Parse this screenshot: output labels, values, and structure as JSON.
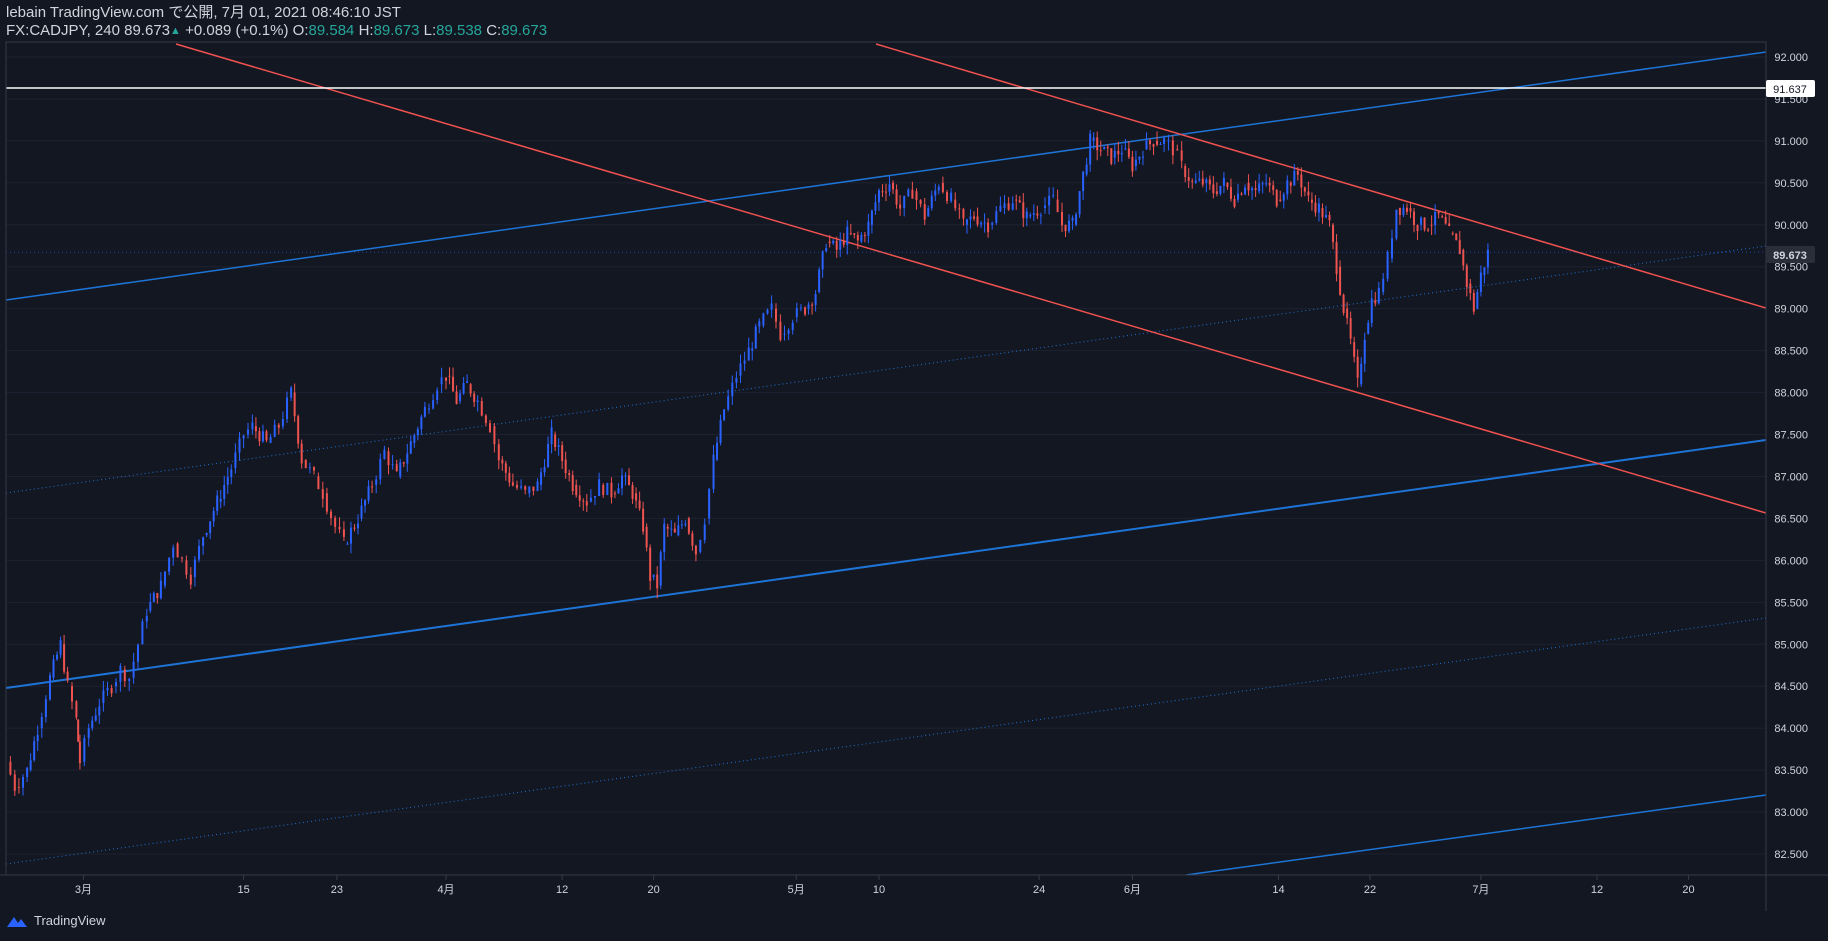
{
  "header": {
    "title": "lebain TradingView.com で公開, 7月 01, 2021 08:46:10 JST",
    "symbol": "FX:CADJPY, 240",
    "last": "89.673",
    "change": "+0.089 (+0.1%)",
    "o_label": "O:",
    "o": "89.584",
    "h_label": "H:",
    "h": "89.673",
    "l_label": "L:",
    "l": "89.538",
    "c_label": "C:",
    "c": "89.673"
  },
  "footer": {
    "brand": "TradingView"
  },
  "price_label": "91.637",
  "last_label": "89.673",
  "colors": {
    "bg": "#131722",
    "up": "#2962ff",
    "down": "#ef5350",
    "blue_line": "#1e74d6",
    "red_line": "#f0524f",
    "grid": "#1e2230"
  },
  "chart_data": {
    "type": "candlestick",
    "symbol": "FX:CADJPY",
    "interval": "240",
    "ylim": [
      82.3,
      92.3
    ],
    "y_ticks": [
      82.5,
      83.0,
      83.5,
      84.0,
      84.5,
      85.0,
      85.5,
      86.0,
      86.5,
      87.0,
      87.5,
      88.0,
      88.5,
      89.0,
      89.5,
      90.0,
      90.5,
      91.0,
      91.5,
      92.0
    ],
    "y_tick_labels": [
      "82.500",
      "83.000",
      "83.500",
      "84.000",
      "84.500",
      "85.000",
      "85.500",
      "86.000",
      "86.500",
      "87.000",
      "87.500",
      "88.000",
      "88.500",
      "89.000",
      "89.500",
      "90.000",
      "90.500",
      "91.000",
      "91.500",
      "92.000"
    ],
    "x_ticks": [
      {
        "label": "3月",
        "x": 0.044
      },
      {
        "label": "15",
        "x": 0.135
      },
      {
        "label": "23",
        "x": 0.188
      },
      {
        "label": "4月",
        "x": 0.25
      },
      {
        "label": "12",
        "x": 0.316
      },
      {
        "label": "20",
        "x": 0.368
      },
      {
        "label": "5月",
        "x": 0.449
      },
      {
        "label": "10",
        "x": 0.496
      },
      {
        "label": "24",
        "x": 0.587
      },
      {
        "label": "6月",
        "x": 0.64
      },
      {
        "label": "14",
        "x": 0.723
      },
      {
        "label": "22",
        "x": 0.775
      },
      {
        "label": "7月",
        "x": 0.838
      },
      {
        "label": "12",
        "x": 0.904
      },
      {
        "label": "20",
        "x": 0.956
      }
    ],
    "price_path": [
      [
        0.0,
        83.6
      ],
      [
        0.005,
        83.3
      ],
      [
        0.012,
        83.5
      ],
      [
        0.018,
        84.0
      ],
      [
        0.025,
        84.6
      ],
      [
        0.031,
        85.0
      ],
      [
        0.035,
        84.5
      ],
      [
        0.04,
        84.1
      ],
      [
        0.042,
        83.6
      ],
      [
        0.047,
        84.0
      ],
      [
        0.053,
        84.3
      ],
      [
        0.06,
        84.5
      ],
      [
        0.065,
        84.7
      ],
      [
        0.07,
        84.6
      ],
      [
        0.075,
        85.0
      ],
      [
        0.08,
        85.4
      ],
      [
        0.088,
        85.7
      ],
      [
        0.095,
        86.2
      ],
      [
        0.1,
        86.0
      ],
      [
        0.105,
        85.8
      ],
      [
        0.112,
        86.3
      ],
      [
        0.12,
        86.7
      ],
      [
        0.128,
        87.1
      ],
      [
        0.135,
        87.5
      ],
      [
        0.14,
        87.6
      ],
      [
        0.148,
        87.4
      ],
      [
        0.155,
        87.6
      ],
      [
        0.162,
        88.0
      ],
      [
        0.168,
        87.2
      ],
      [
        0.175,
        87.0
      ],
      [
        0.18,
        86.8
      ],
      [
        0.187,
        86.4
      ],
      [
        0.192,
        86.2
      ],
      [
        0.2,
        86.5
      ],
      [
        0.208,
        86.9
      ],
      [
        0.215,
        87.3
      ],
      [
        0.222,
        87.0
      ],
      [
        0.23,
        87.4
      ],
      [
        0.238,
        87.8
      ],
      [
        0.245,
        88.1
      ],
      [
        0.25,
        88.2
      ],
      [
        0.256,
        87.9
      ],
      [
        0.262,
        88.1
      ],
      [
        0.268,
        87.9
      ],
      [
        0.275,
        87.6
      ],
      [
        0.28,
        87.2
      ],
      [
        0.288,
        86.9
      ],
      [
        0.295,
        86.8
      ],
      [
        0.302,
        86.9
      ],
      [
        0.31,
        87.5
      ],
      [
        0.316,
        87.2
      ],
      [
        0.322,
        86.9
      ],
      [
        0.33,
        86.7
      ],
      [
        0.337,
        86.9
      ],
      [
        0.344,
        86.8
      ],
      [
        0.35,
        87.0
      ],
      [
        0.356,
        86.8
      ],
      [
        0.362,
        86.4
      ],
      [
        0.366,
        85.8
      ],
      [
        0.37,
        85.7
      ],
      [
        0.374,
        86.4
      ],
      [
        0.38,
        86.3
      ],
      [
        0.386,
        86.5
      ],
      [
        0.392,
        86.1
      ],
      [
        0.397,
        86.5
      ],
      [
        0.402,
        87.2
      ],
      [
        0.408,
        87.8
      ],
      [
        0.415,
        88.2
      ],
      [
        0.422,
        88.5
      ],
      [
        0.428,
        88.8
      ],
      [
        0.435,
        89.0
      ],
      [
        0.44,
        88.7
      ],
      [
        0.447,
        88.9
      ],
      [
        0.454,
        89.0
      ],
      [
        0.46,
        89.2
      ],
      [
        0.466,
        89.8
      ],
      [
        0.472,
        89.7
      ],
      [
        0.478,
        89.9
      ],
      [
        0.484,
        89.8
      ],
      [
        0.49,
        90.0
      ],
      [
        0.496,
        90.4
      ],
      [
        0.502,
        90.5
      ],
      [
        0.508,
        90.2
      ],
      [
        0.515,
        90.4
      ],
      [
        0.522,
        90.1
      ],
      [
        0.53,
        90.5
      ],
      [
        0.537,
        90.3
      ],
      [
        0.544,
        90.0
      ],
      [
        0.55,
        90.1
      ],
      [
        0.558,
        90.0
      ],
      [
        0.565,
        90.2
      ],
      [
        0.572,
        90.3
      ],
      [
        0.58,
        90.1
      ],
      [
        0.588,
        90.2
      ],
      [
        0.595,
        90.3
      ],
      [
        0.6,
        90.0
      ],
      [
        0.606,
        90.0
      ],
      [
        0.612,
        90.6
      ],
      [
        0.616,
        91.0
      ],
      [
        0.622,
        90.9
      ],
      [
        0.628,
        90.8
      ],
      [
        0.634,
        90.9
      ],
      [
        0.64,
        90.7
      ],
      [
        0.646,
        90.9
      ],
      [
        0.652,
        91.0
      ],
      [
        0.658,
        91.0
      ],
      [
        0.663,
        90.9
      ],
      [
        0.668,
        90.7
      ],
      [
        0.674,
        90.5
      ],
      [
        0.68,
        90.5
      ],
      [
        0.686,
        90.4
      ],
      [
        0.692,
        90.5
      ],
      [
        0.698,
        90.3
      ],
      [
        0.704,
        90.5
      ],
      [
        0.71,
        90.4
      ],
      [
        0.716,
        90.5
      ],
      [
        0.722,
        90.3
      ],
      [
        0.728,
        90.5
      ],
      [
        0.734,
        90.6
      ],
      [
        0.74,
        90.3
      ],
      [
        0.746,
        90.2
      ],
      [
        0.752,
        90.0
      ],
      [
        0.756,
        89.5
      ],
      [
        0.76,
        89.0
      ],
      [
        0.764,
        88.6
      ],
      [
        0.768,
        88.1
      ],
      [
        0.772,
        88.7
      ],
      [
        0.776,
        89.1
      ],
      [
        0.78,
        89.2
      ],
      [
        0.785,
        89.6
      ],
      [
        0.79,
        90.2
      ],
      [
        0.796,
        90.2
      ],
      [
        0.802,
        90.0
      ],
      [
        0.808,
        90.0
      ],
      [
        0.814,
        90.1
      ],
      [
        0.82,
        89.9
      ],
      [
        0.826,
        89.7
      ],
      [
        0.83,
        89.3
      ],
      [
        0.834,
        89.0
      ],
      [
        0.838,
        89.4
      ],
      [
        0.842,
        89.67
      ]
    ]
  }
}
